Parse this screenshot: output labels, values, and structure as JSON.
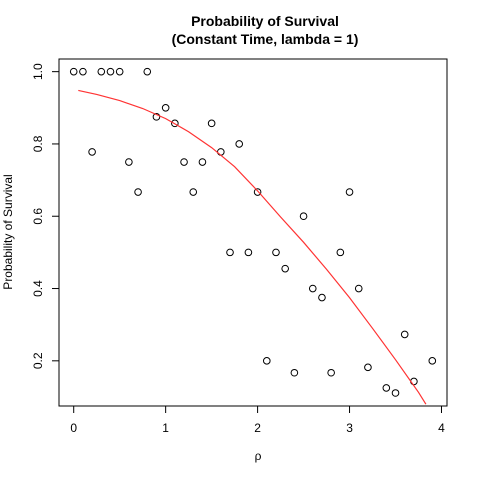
{
  "chart_data": {
    "type": "scatter",
    "title": "Probability of Survival",
    "subtitle": "(Constant Time, lambda = 1)",
    "xlabel": "ρ",
    "ylabel": "Probability of Survival",
    "xlim": [
      -0.16,
      4.06
    ],
    "ylim": [
      0.075,
      1.035
    ],
    "x_ticks": [
      0,
      1,
      2,
      3,
      4
    ],
    "x_tick_labels": [
      "0",
      "1",
      "2",
      "3",
      "4"
    ],
    "y_ticks": [
      0.2,
      0.4,
      0.6,
      0.8,
      1.0
    ],
    "y_tick_labels": [
      "0.2",
      "0.4",
      "0.6",
      "0.8",
      "1.0"
    ],
    "grid": false,
    "legend": "none",
    "series": [
      {
        "type": "scatter",
        "marker": "open-circle",
        "color": "#000000",
        "x": [
          0.0,
          0.1,
          0.2,
          0.3,
          0.4,
          0.5,
          0.6,
          0.7,
          0.8,
          0.9,
          1.0,
          1.1,
          1.2,
          1.3,
          1.4,
          1.5,
          1.6,
          1.7,
          1.8,
          1.9,
          2.0,
          2.1,
          2.2,
          2.3,
          2.4,
          2.5,
          2.6,
          2.7,
          2.8,
          2.9,
          3.0,
          3.1,
          3.2,
          3.4,
          3.5,
          3.6,
          3.7,
          3.9
        ],
        "y": [
          1.0,
          1.0,
          0.778,
          1.0,
          1.0,
          1.0,
          0.75,
          0.667,
          1.0,
          0.875,
          0.9,
          0.857,
          0.75,
          0.667,
          0.75,
          0.857,
          0.778,
          0.5,
          0.8,
          0.5,
          0.667,
          0.2,
          0.5,
          0.455,
          0.167,
          0.6,
          0.4,
          0.375,
          0.167,
          0.5,
          0.667,
          0.4,
          0.182,
          0.125,
          0.111,
          0.273,
          0.143,
          0.2
        ]
      },
      {
        "type": "line",
        "color": "#ff3333",
        "x": [
          0.05,
          0.25,
          0.5,
          0.75,
          1.0,
          1.25,
          1.5,
          1.75,
          2.0,
          2.25,
          2.5,
          2.75,
          3.0,
          3.25,
          3.5,
          3.75,
          3.83
        ],
        "y": [
          0.948,
          0.937,
          0.92,
          0.898,
          0.87,
          0.834,
          0.79,
          0.737,
          0.67,
          0.598,
          0.528,
          0.453,
          0.375,
          0.29,
          0.203,
          0.113,
          0.08
        ]
      }
    ]
  }
}
